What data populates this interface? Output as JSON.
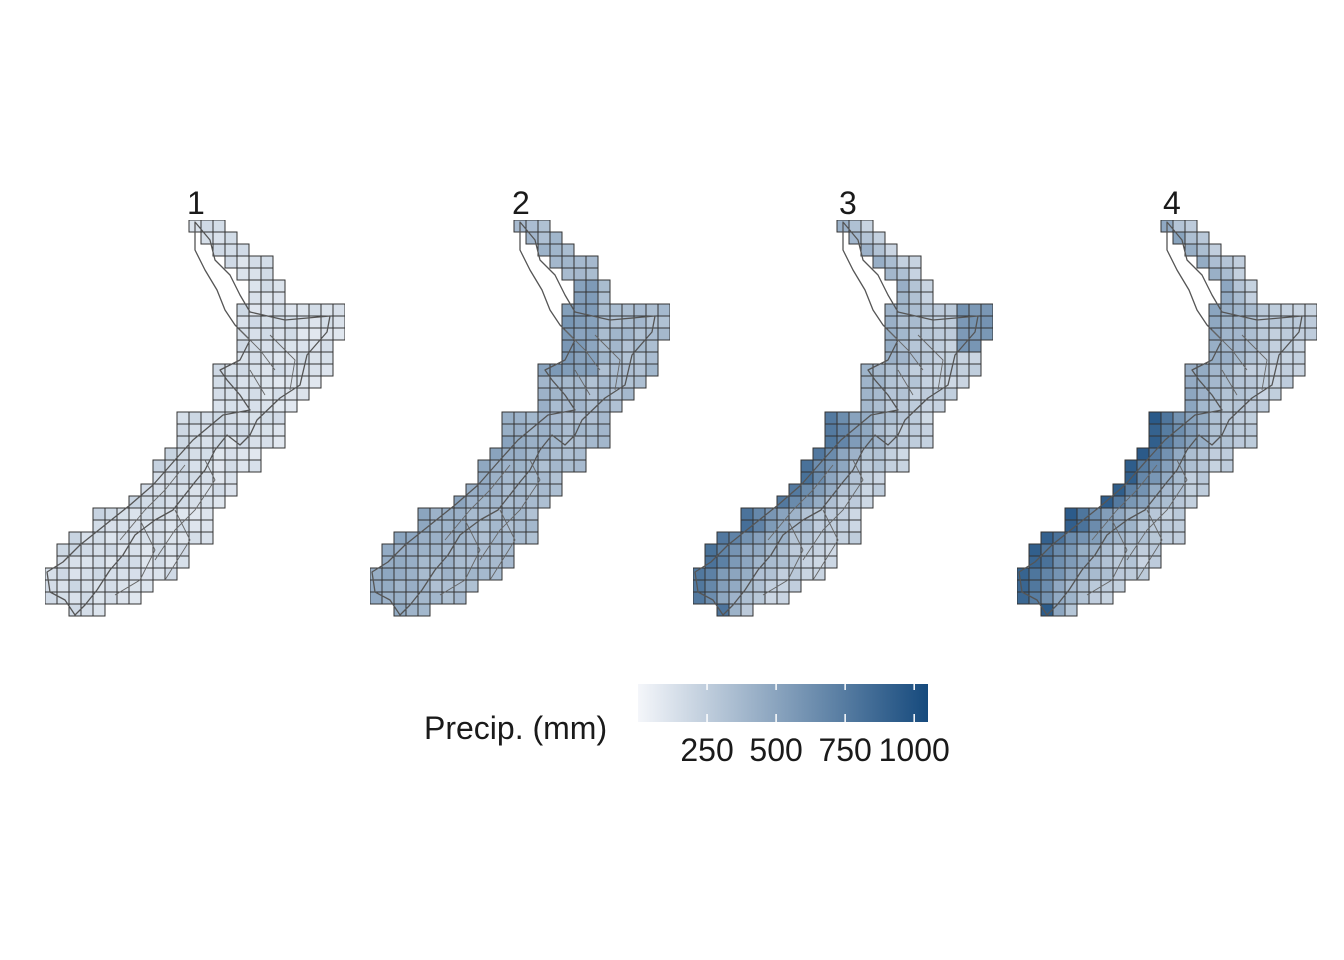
{
  "map": {
    "panels": [
      {
        "label": "1",
        "intensity": 0.12,
        "west_boost": 0.05
      },
      {
        "label": "2",
        "intensity": 0.33,
        "west_boost": 0.12
      },
      {
        "label": "3",
        "intensity": 0.2,
        "west_boost": 0.55
      },
      {
        "label": "4",
        "intensity": 0.22,
        "west_boost": 0.65
      }
    ],
    "colors": {
      "low": "#f4f6fa",
      "high": "#164a7d",
      "cell_border": "#333333",
      "coastline": "#555555"
    }
  },
  "legend": {
    "title": "Precip. (mm)",
    "ticks": [
      "250",
      "500",
      "750",
      "1000"
    ],
    "tick_values": [
      250,
      500,
      750,
      1000
    ],
    "range": [
      0,
      1050
    ]
  }
}
